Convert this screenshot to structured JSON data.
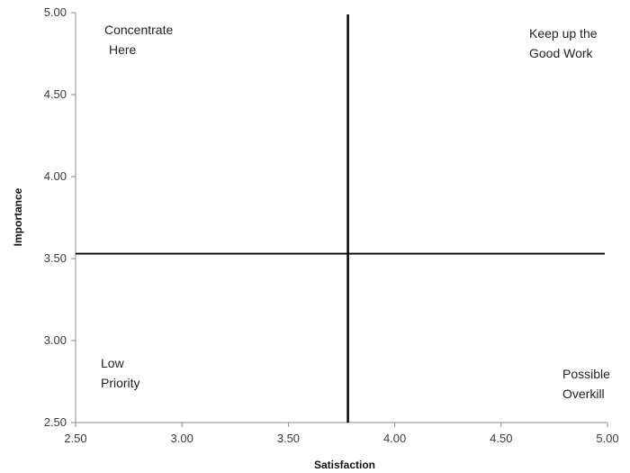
{
  "chart_data": {
    "type": "scatter",
    "title": "",
    "xlabel": "Satisfaction",
    "ylabel": "Importance",
    "xlim": [
      2.5,
      5.0
    ],
    "ylim": [
      2.5,
      5.0
    ],
    "x_ticks": [
      "2.50",
      "3.00",
      "3.50",
      "4.00",
      "4.50",
      "5.00"
    ],
    "y_ticks": [
      "2.50",
      "3.00",
      "3.50",
      "4.00",
      "4.50",
      "5.00"
    ],
    "grid": false,
    "dividers": {
      "x": 3.78,
      "y": 3.53
    },
    "quadrants": {
      "top_left": [
        "Concentrate",
        "Here"
      ],
      "top_right": [
        "Keep up the",
        "Good Work"
      ],
      "bottom_left": [
        "Low",
        "Priority"
      ],
      "bottom_right": [
        "Possible",
        "Overkill"
      ]
    },
    "colors": {
      "axis": "#8a8a8a",
      "divider": "#000000",
      "text": "#222222"
    }
  }
}
